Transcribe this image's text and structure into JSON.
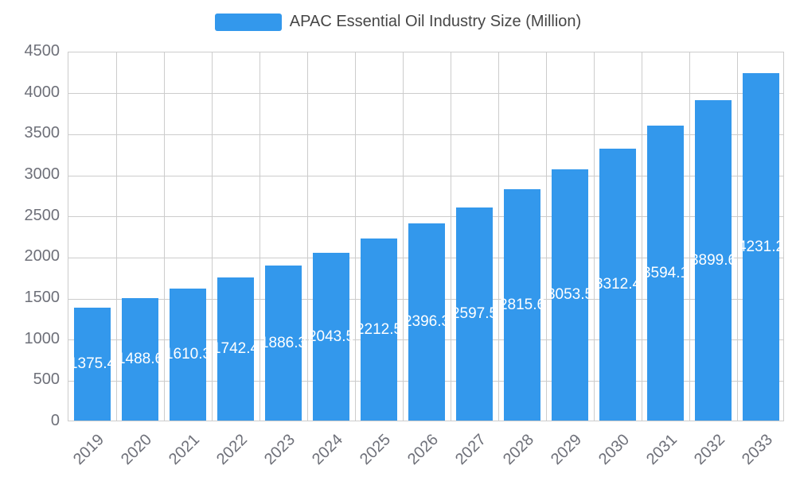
{
  "legend": {
    "label": "APAC Essential Oil Industry Size (Million)"
  },
  "chart_data": {
    "type": "bar",
    "title": "APAC Essential Oil Industry Size (Million)",
    "categories": [
      "2019",
      "2020",
      "2021",
      "2022",
      "2023",
      "2024",
      "2025",
      "2026",
      "2027",
      "2028",
      "2029",
      "2030",
      "2031",
      "2032",
      "2033"
    ],
    "values": [
      1375.4,
      1488.6,
      1610.3,
      1742.4,
      1886.3,
      2043.5,
      2212.5,
      2396.3,
      2597.5,
      2815.6,
      3053.5,
      3312.4,
      3594.1,
      3899.6,
      4231.2
    ],
    "xlabel": "",
    "ylabel": "",
    "ylim": [
      0,
      4500
    ],
    "ytick_step": 500,
    "grid": true,
    "legend_position": "top-center",
    "value_labels": "centered-in-bar",
    "colors": {
      "bar": "#3398EC",
      "grid": "#cccccc",
      "axis_text": "#6E7079",
      "value_label": "#ffffff",
      "legend_text": "#464646",
      "background": "#ffffff"
    }
  }
}
